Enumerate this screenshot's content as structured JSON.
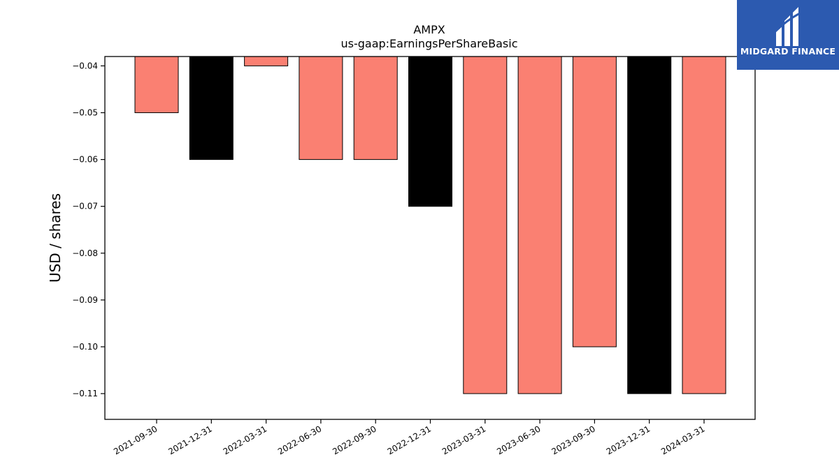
{
  "chart_data": {
    "type": "bar",
    "title": "AMPX",
    "subtitle": "us-gaap:EarningsPerShareBasic",
    "xlabel": "",
    "ylabel": "USD / shares",
    "categories": [
      "2021-09-30",
      "2021-12-31",
      "2022-03-31",
      "2022-06-30",
      "2022-09-30",
      "2022-12-31",
      "2023-03-31",
      "2023-06-30",
      "2023-09-30",
      "2023-12-31",
      "2024-03-31"
    ],
    "values": [
      -0.05,
      -0.06,
      -0.04,
      -0.06,
      -0.06,
      -0.07,
      -0.11,
      -0.11,
      -0.1,
      -0.11,
      -0.11
    ],
    "bar_colors": [
      "#fa8072",
      "#000000",
      "#fa8072",
      "#fa8072",
      "#fa8072",
      "#000000",
      "#fa8072",
      "#fa8072",
      "#fa8072",
      "#000000",
      "#fa8072"
    ],
    "yticks": [
      -0.04,
      -0.05,
      -0.06,
      -0.07,
      -0.08,
      -0.09,
      -0.1,
      -0.11
    ],
    "ytick_labels": [
      "−0.04",
      "−0.05",
      "−0.06",
      "−0.07",
      "−0.08",
      "−0.09",
      "−0.10",
      "−0.11"
    ],
    "ylim": [
      -0.1155,
      -0.038
    ],
    "grid": false,
    "legend": "none"
  },
  "logo": {
    "text": "MIDGARD FINANCE",
    "background": "#2c5ab0"
  }
}
